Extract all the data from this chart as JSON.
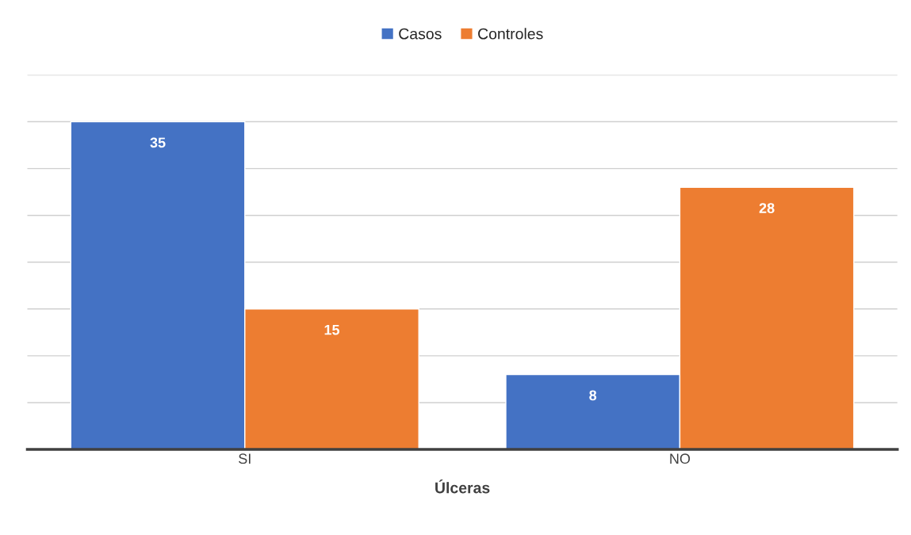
{
  "chart_data": {
    "type": "bar",
    "xlabel": "Úlceras",
    "categories": [
      "SI",
      "NO"
    ],
    "series": [
      {
        "name": "Casos",
        "color": "#4472c4",
        "values": [
          35,
          8
        ]
      },
      {
        "name": "Controles",
        "color": "#ed7d31",
        "values": [
          15,
          28
        ]
      }
    ],
    "ylim": [
      0,
      40
    ],
    "yticks": [
      {
        "value": 0,
        "label": null
      },
      {
        "value": 5,
        "label": null
      },
      {
        "value": 10,
        "label": null
      },
      {
        "value": 15,
        "label": null
      },
      {
        "value": 20,
        "label": null
      },
      {
        "value": 25,
        "label": null
      },
      {
        "value": 30,
        "label": null
      },
      {
        "value": 35,
        "label": null
      },
      {
        "value": 40,
        "label": null
      }
    ],
    "tick_labels": "x",
    "grid": "y",
    "legend": "top",
    "data_labels": true
  }
}
